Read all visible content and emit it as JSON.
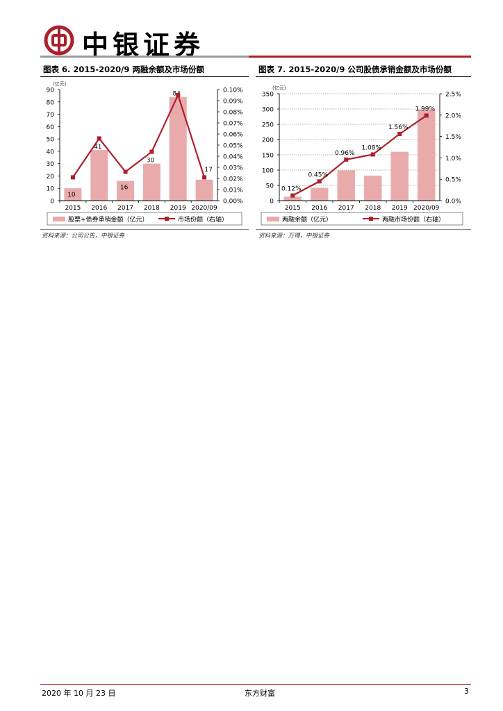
{
  "header": {
    "brand": "中银证券",
    "accent_color": "#ad1f2c",
    "logo_icon": "bank-of-china-logo-icon"
  },
  "figures": [
    {
      "title": "图表 6. 2015-2020/9 两融余额及市场份额",
      "source": "资料来源：公司公告，中银证券",
      "unit_label": "(亿元)",
      "legend_bar": "股票+债券承销金额（亿元）",
      "legend_line": "市场份额（右轴）"
    },
    {
      "title": "图表 7. 2015-2020/9 公司股债承销金额及市场份额",
      "source": "资料来源：万得，中银证券",
      "unit_label": "(亿元)",
      "legend_bar": "两融余额（亿元）",
      "legend_line": "两融市场份额（右轴）"
    }
  ],
  "chart_data": [
    {
      "type": "bar",
      "title": "图表 6. 2015-2020/9 两融余额及市场份额",
      "categories": [
        "2015",
        "2016",
        "2017",
        "2018",
        "2019",
        "2020/09"
      ],
      "series": [
        {
          "name": "股票+债券承销金额（亿元）",
          "type": "bar",
          "axis": "left",
          "values": [
            10,
            41,
            16,
            30,
            84,
            17
          ],
          "labels": [
            "10",
            "41",
            "16",
            "30",
            "84",
            "17"
          ],
          "color": "#e8aaaa"
        },
        {
          "name": "市场份额（右轴）",
          "type": "line",
          "axis": "right",
          "values": [
            0.021,
            0.056,
            0.026,
            0.044,
            0.095,
            0.021
          ],
          "color": "#ad1f2c"
        }
      ],
      "ylim_left": [
        0,
        90
      ],
      "yticks_left": [
        "0",
        "10",
        "20",
        "30",
        "40",
        "50",
        "60",
        "70",
        "80",
        "90"
      ],
      "ylim_right": [
        0,
        0.1
      ],
      "yticks_right": [
        "0.00%",
        "0.01%",
        "0.02%",
        "0.03%",
        "0.04%",
        "0.05%",
        "0.06%",
        "0.07%",
        "0.08%",
        "0.09%",
        "0.10%"
      ],
      "legend": "bottom",
      "grid": false
    },
    {
      "type": "bar",
      "title": "图表 7. 2015-2020/9 公司股债承销金额及市场份额",
      "categories": [
        "2015",
        "2016",
        "2017",
        "2018",
        "2019",
        "2020/09"
      ],
      "series": [
        {
          "name": "两融余额（亿元）",
          "type": "bar",
          "axis": "left",
          "values": [
            13,
            42,
            99,
            82,
            160,
            298
          ],
          "color": "#e8aaaa"
        },
        {
          "name": "两融市场份额（右轴）",
          "type": "line",
          "axis": "right",
          "values": [
            0.12,
            0.45,
            0.96,
            1.08,
            1.56,
            1.99
          ],
          "labels": [
            "0.12%",
            "0.45%",
            "0.96%",
            "1.08%",
            "1.56%",
            "1.99%"
          ],
          "color": "#ad1f2c"
        }
      ],
      "ylim_left": [
        0,
        350
      ],
      "yticks_left": [
        "0",
        "50",
        "100",
        "150",
        "200",
        "250",
        "300",
        "350"
      ],
      "ylim_right": [
        0,
        2.5
      ],
      "yticks_right": [
        "0.0%",
        "0.5%",
        "1.0%",
        "1.5%",
        "2.0%",
        "2.5%"
      ],
      "legend": "bottom",
      "grid": true
    }
  ],
  "footer": {
    "date": "2020 年 10 月 23 日",
    "publisher": "东方财富",
    "page": "3"
  }
}
